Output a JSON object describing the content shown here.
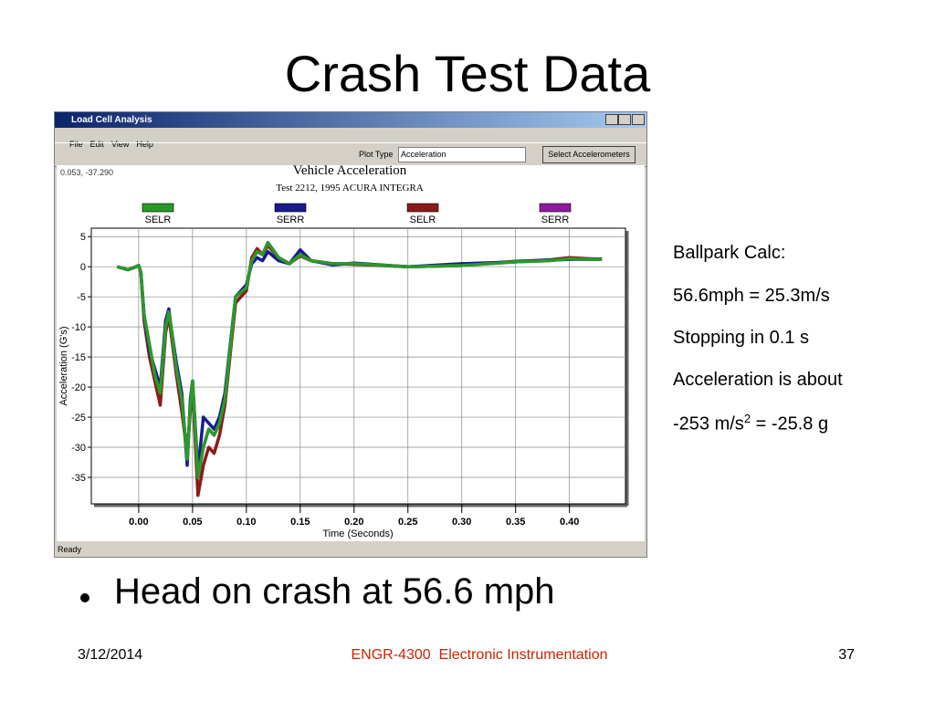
{
  "slide": {
    "title": "Crash Test Data",
    "bullet": "Head on crash at 56.6 mph"
  },
  "notes": [
    "Ballpark Calc:",
    "56.6mph = 25.3m/s",
    "Stopping in 0.1 s",
    "Acceleration is about"
  ],
  "note_formula": {
    "base": "-253 m/s",
    "exponent": "2",
    "rest": "= -25.8 g"
  },
  "footer": {
    "date": "3/12/2014",
    "course": "ENGR-4300  Electronic Instrumentation",
    "page": "37"
  },
  "window": {
    "title": "Load Cell Analysis",
    "menu": [
      "File",
      "Edit",
      "View",
      "Help"
    ],
    "plot_type_label": "Plot Type",
    "plot_type_value": "Acceleration",
    "button": "Select Accelerometers",
    "readout": "0.053, -37.290",
    "status": "Ready"
  },
  "chart_data": {
    "type": "line",
    "title": "Vehicle Acceleration",
    "subtitle": "Test 2212, 1995 ACURA INTEGRA",
    "x_label": "Time (Seconds)",
    "y_label": "Acceleration (G's)",
    "x": [
      -0.02,
      -0.01,
      -0.005,
      0,
      0.002,
      0.005,
      0.01,
      0.015,
      0.02,
      0.025,
      0.028,
      0.03,
      0.035,
      0.04,
      0.045,
      0.048,
      0.05,
      0.055,
      0.06,
      0.065,
      0.07,
      0.075,
      0.08,
      0.09,
      0.1,
      0.105,
      0.11,
      0.115,
      0.12,
      0.13,
      0.14,
      0.15,
      0.16,
      0.18,
      0.2,
      0.25,
      0.3,
      0.35,
      0.38,
      0.4,
      0.43
    ],
    "series": [
      {
        "name": "SELR",
        "color": "#2a9a2a",
        "values": [
          0,
          -0.5,
          -0.2,
          0.2,
          -1,
          -8,
          -13,
          -18,
          -21,
          -10,
          -7.5,
          -10,
          -17,
          -22,
          -32,
          -23,
          -19,
          -35,
          -30,
          -27,
          -28,
          -26,
          -22,
          -5,
          -3.5,
          1,
          2.5,
          2,
          4,
          1.5,
          0.5,
          2,
          1,
          0.5,
          0.5,
          0,
          0.2,
          0.8,
          1,
          1.3,
          1.2
        ]
      },
      {
        "name": "SERR",
        "color": "#1a1a8c",
        "values": [
          0,
          -0.5,
          -0.2,
          0.2,
          -1,
          -8,
          -14,
          -17,
          -20,
          -9,
          -7,
          -10,
          -16,
          -21,
          -33,
          -22,
          -19,
          -34,
          -25,
          -26,
          -27,
          -25,
          -21,
          -5,
          -3,
          0.5,
          1.5,
          1,
          2.5,
          1,
          0.5,
          2.8,
          1,
          0.3,
          0.6,
          0,
          0.5,
          0.8,
          1.1,
          1.2,
          1.3
        ]
      },
      {
        "name": "SELR",
        "color": "#8b1a1a",
        "values": [
          0,
          -0.5,
          -0.2,
          0.2,
          -1,
          -9,
          -15,
          -19,
          -23,
          -11,
          -8,
          -11,
          -18,
          -24,
          -31,
          -24,
          -20,
          -38,
          -33,
          -30,
          -31,
          -28,
          -23,
          -6,
          -4,
          1.5,
          3,
          2,
          3.5,
          1.5,
          0.5,
          1.8,
          1,
          0.5,
          0.4,
          0,
          0.2,
          0.9,
          1.1,
          1.5,
          1.2
        ]
      },
      {
        "name": "SERR",
        "color": "#8e1a9e",
        "values": [
          0,
          -0.5,
          -0.2,
          0.2,
          -1,
          -8,
          -13,
          -18,
          -21,
          -10,
          -7.5,
          -10,
          -17,
          -22,
          -32,
          -23,
          -19,
          -35,
          -30,
          -27,
          -28,
          -26,
          -22,
          -5,
          -3.5,
          1,
          2.5,
          2,
          4,
          1.5,
          0.5,
          2,
          1,
          0.5,
          0.5,
          0,
          0.2,
          0.8,
          1,
          1.3,
          1.2
        ]
      }
    ],
    "xlim": [
      -0.044,
      0.452
    ],
    "ylim": [
      -39.4,
      6.4
    ],
    "xticks": [
      {
        "value": 0,
        "label": "0.00"
      },
      {
        "value": 0.05,
        "label": "0.05"
      },
      {
        "value": 0.1,
        "label": "0.10"
      },
      {
        "value": 0.15,
        "label": "0.15"
      },
      {
        "value": 0.2,
        "label": "0.20"
      },
      {
        "value": 0.25,
        "label": "0.25"
      },
      {
        "value": 0.3,
        "label": "0.30"
      },
      {
        "value": 0.35,
        "label": "0.35"
      },
      {
        "value": 0.4,
        "label": "0.40"
      }
    ],
    "yticks": [
      5,
      0,
      -5,
      -10,
      -15,
      -20,
      -25,
      -30,
      -35
    ],
    "grid": true
  }
}
